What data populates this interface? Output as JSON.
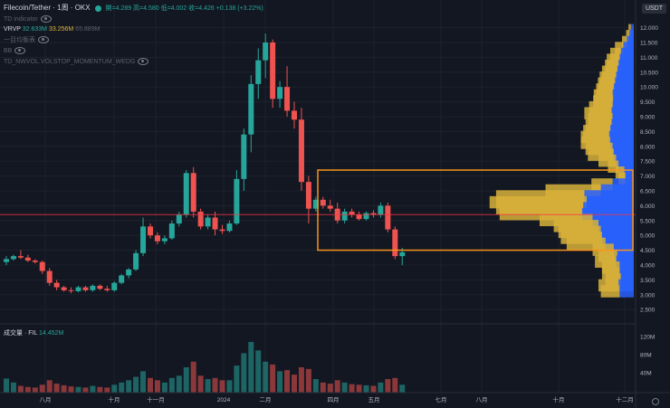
{
  "header": {
    "title": "Filecoin/Tether · 1周 · OKX",
    "ohlc": "開=4.289  高=4.580  低=4.002  收=4.426  +0.138 (+3.22%)",
    "currency": "USDT"
  },
  "indicators": [
    {
      "text": "TD indicator",
      "style": "dim"
    },
    {
      "label": "VRVP",
      "values": [
        "32.633M",
        "33.256M",
        "65.889M"
      ]
    },
    {
      "text": "一目均衡表",
      "style": "dim"
    },
    {
      "text": "BB",
      "style": "dim"
    },
    {
      "text": "TD_NWVOL.VOLSTOP_MOMENTUM_WEDG",
      "style": "dim"
    }
  ],
  "volume_legend": {
    "label": "成交量 · FIL",
    "value": "14.452M"
  },
  "colors": {
    "up": "#26a69a",
    "down": "#ef5350",
    "vp_up": "#2962ff",
    "vp_down": "#d8b23a",
    "box": "#f7931a",
    "hline": "#f23645"
  },
  "chart_data": {
    "type": "candlestick",
    "price_axis": {
      "ticks": [
        "12.000",
        "11.500",
        "11.000",
        "10.500",
        "10.000",
        "9.500",
        "9.000",
        "8.500",
        "8.000",
        "7.500",
        "7.000",
        "6.500",
        "6.000",
        "5.500",
        "5.000",
        "4.500",
        "4.000",
        "3.500",
        "3.000",
        "2.500"
      ],
      "range": [
        2.2,
        12.2
      ]
    },
    "volume_axis": {
      "ticks": [
        "120M",
        "80M",
        "40M"
      ]
    },
    "time_axis": {
      "labels": [
        "八月",
        "十月",
        "十一月",
        "2024",
        "二月",
        "四月",
        "五月",
        "七月",
        "八月",
        "十月",
        "十二月"
      ]
    },
    "horizontal_line": 5.7,
    "highlight_box": {
      "price_top": 7.2,
      "price_bottom": 4.5
    },
    "candles": [
      [
        4.1,
        4.3,
        4.0,
        4.2,
        25
      ],
      [
        4.2,
        4.35,
        4.15,
        4.3,
        18
      ],
      [
        4.3,
        4.5,
        4.2,
        4.25,
        12
      ],
      [
        4.25,
        4.35,
        4.1,
        4.15,
        10
      ],
      [
        4.15,
        4.2,
        4.05,
        4.1,
        9
      ],
      [
        4.1,
        4.15,
        3.7,
        3.8,
        14
      ],
      [
        3.8,
        3.9,
        3.3,
        3.4,
        22
      ],
      [
        3.4,
        3.5,
        3.15,
        3.25,
        16
      ],
      [
        3.25,
        3.3,
        3.1,
        3.15,
        13
      ],
      [
        3.15,
        3.25,
        3.05,
        3.12,
        11
      ],
      [
        3.12,
        3.3,
        3.08,
        3.25,
        10
      ],
      [
        3.25,
        3.3,
        3.1,
        3.15,
        9
      ],
      [
        3.15,
        3.35,
        3.1,
        3.3,
        12
      ],
      [
        3.3,
        3.35,
        3.15,
        3.2,
        10
      ],
      [
        3.2,
        3.3,
        3.1,
        3.15,
        9
      ],
      [
        3.15,
        3.45,
        3.1,
        3.4,
        14
      ],
      [
        3.4,
        3.7,
        3.35,
        3.65,
        18
      ],
      [
        3.65,
        3.9,
        3.55,
        3.85,
        22
      ],
      [
        3.85,
        4.5,
        3.8,
        4.4,
        28
      ],
      [
        4.4,
        5.6,
        4.3,
        5.3,
        38
      ],
      [
        5.3,
        5.4,
        4.9,
        5.0,
        26
      ],
      [
        5.0,
        5.1,
        4.7,
        4.8,
        22
      ],
      [
        4.8,
        5.0,
        4.7,
        4.9,
        18
      ],
      [
        4.9,
        5.5,
        4.85,
        5.4,
        26
      ],
      [
        5.4,
        5.8,
        5.3,
        5.7,
        30
      ],
      [
        5.7,
        7.2,
        5.6,
        7.1,
        45
      ],
      [
        7.1,
        7.3,
        5.6,
        5.8,
        55
      ],
      [
        5.8,
        5.9,
        5.2,
        5.3,
        30
      ],
      [
        5.3,
        5.7,
        5.2,
        5.6,
        24
      ],
      [
        5.6,
        5.8,
        5.0,
        5.2,
        26
      ],
      [
        5.2,
        5.35,
        5.05,
        5.15,
        22
      ],
      [
        5.15,
        5.5,
        5.1,
        5.4,
        22
      ],
      [
        5.4,
        7.2,
        5.35,
        6.9,
        48
      ],
      [
        6.9,
        8.6,
        6.5,
        8.4,
        70
      ],
      [
        8.4,
        10.4,
        7.8,
        10.1,
        90
      ],
      [
        10.1,
        11.3,
        9.6,
        10.9,
        75
      ],
      [
        10.9,
        11.8,
        10.3,
        11.5,
        55
      ],
      [
        11.5,
        11.6,
        9.3,
        9.6,
        50
      ],
      [
        9.6,
        10.2,
        9.3,
        10.0,
        38
      ],
      [
        10.0,
        10.7,
        9.0,
        9.2,
        40
      ],
      [
        9.2,
        9.5,
        8.6,
        8.9,
        32
      ],
      [
        8.9,
        9.3,
        6.5,
        6.8,
        45
      ],
      [
        6.8,
        7.0,
        5.4,
        5.9,
        42
      ],
      [
        5.9,
        6.3,
        5.8,
        6.2,
        24
      ],
      [
        6.2,
        6.3,
        5.9,
        6.0,
        18
      ],
      [
        6.0,
        6.2,
        5.8,
        5.9,
        16
      ],
      [
        5.9,
        6.1,
        5.4,
        5.5,
        22
      ],
      [
        5.5,
        5.9,
        5.4,
        5.8,
        18
      ],
      [
        5.8,
        5.9,
        5.6,
        5.7,
        15
      ],
      [
        5.7,
        5.8,
        5.5,
        5.55,
        14
      ],
      [
        5.55,
        5.8,
        5.5,
        5.75,
        13
      ],
      [
        5.75,
        5.85,
        5.6,
        5.7,
        12
      ],
      [
        5.7,
        6.1,
        5.6,
        6.0,
        18
      ],
      [
        6.0,
        6.1,
        5.1,
        5.2,
        24
      ],
      [
        5.2,
        5.3,
        4.2,
        4.3,
        26
      ],
      [
        4.3,
        4.58,
        4.0,
        4.43,
        14
      ]
    ],
    "volume_profile": [
      [
        11.9,
        0.5,
        0.4
      ],
      [
        11.7,
        0.8,
        0.5
      ],
      [
        11.5,
        1.2,
        0.8
      ],
      [
        11.3,
        1.8,
        1.4
      ],
      [
        11.1,
        2.2,
        1.8
      ],
      [
        10.9,
        2.4,
        2.2
      ],
      [
        10.7,
        2.6,
        2.3
      ],
      [
        10.5,
        2.8,
        2.6
      ],
      [
        10.3,
        3.0,
        2.8
      ],
      [
        10.1,
        3.2,
        2.9
      ],
      [
        9.9,
        3.4,
        3.0
      ],
      [
        9.7,
        3.6,
        3.2
      ],
      [
        9.5,
        3.5,
        3.4
      ],
      [
        9.3,
        3.6,
        4.0
      ],
      [
        9.1,
        3.8,
        4.6
      ],
      [
        8.9,
        3.6,
        4.2
      ],
      [
        8.7,
        3.8,
        4.4
      ],
      [
        8.5,
        4.0,
        4.6
      ],
      [
        8.3,
        4.2,
        4.8
      ],
      [
        8.1,
        4.0,
        5.0
      ],
      [
        7.9,
        3.6,
        4.6
      ],
      [
        7.7,
        3.4,
        4.4
      ],
      [
        7.5,
        3.0,
        3.0
      ],
      [
        7.3,
        2.6,
        1.8
      ],
      [
        7.1,
        1.6,
        1.5
      ],
      [
        6.9,
        1.4,
        1.2
      ],
      [
        6.7,
        3.6,
        3.6
      ],
      [
        6.5,
        5.6,
        9.4
      ],
      [
        6.3,
        8.4,
        15.0
      ],
      [
        6.1,
        8.0,
        16.5
      ],
      [
        5.9,
        8.6,
        14.8
      ],
      [
        5.7,
        8.8,
        14.0
      ],
      [
        5.5,
        7.0,
        9.0
      ],
      [
        5.3,
        6.0,
        7.6
      ],
      [
        5.1,
        5.6,
        7.2
      ],
      [
        4.9,
        5.4,
        7.0
      ],
      [
        4.7,
        4.8,
        6.6
      ],
      [
        4.5,
        3.4,
        3.6
      ],
      [
        4.3,
        2.8,
        3.2
      ],
      [
        4.1,
        3.0,
        3.6
      ],
      [
        3.9,
        2.4,
        3.0
      ],
      [
        3.7,
        2.4,
        3.0
      ],
      [
        3.5,
        2.2,
        2.6
      ],
      [
        3.3,
        2.6,
        3.4
      ],
      [
        3.1,
        2.4,
        3.2
      ]
    ]
  }
}
